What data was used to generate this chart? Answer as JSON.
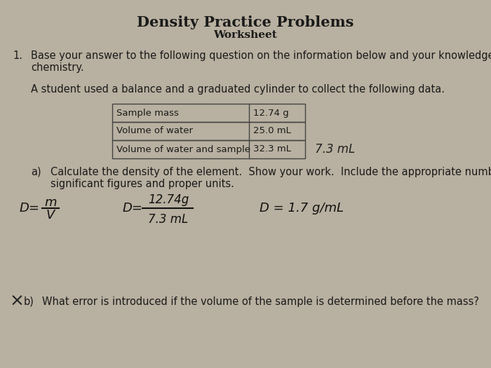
{
  "title": "Density Practice Problems",
  "subtitle": "Worksheet",
  "background_color": "#b8b0a0",
  "text_color": "#1a1a1a",
  "question_number": "1.",
  "question_line1": "Base your answer to the following question on the information below and your knowledge of",
  "question_line2": "chemistry.",
  "student_text": "A student used a balance and a graduated cylinder to collect the following data.",
  "table_rows": [
    [
      "Sample mass",
      "12.74 g"
    ],
    [
      "Volume of water",
      "25.0 mL"
    ],
    [
      "Volume of water and sample",
      "32.3 mL"
    ]
  ],
  "handwritten_note": "7.3 mL",
  "part_a_label": "a)",
  "part_a_line1": "Calculate the density of the element.  Show your work.  Include the appropriate number of",
  "part_a_line2": "significant figures and proper units.",
  "part_b_label": "b)",
  "part_b_text": "What error is introduced if the volume of the sample is determined before the mass?"
}
